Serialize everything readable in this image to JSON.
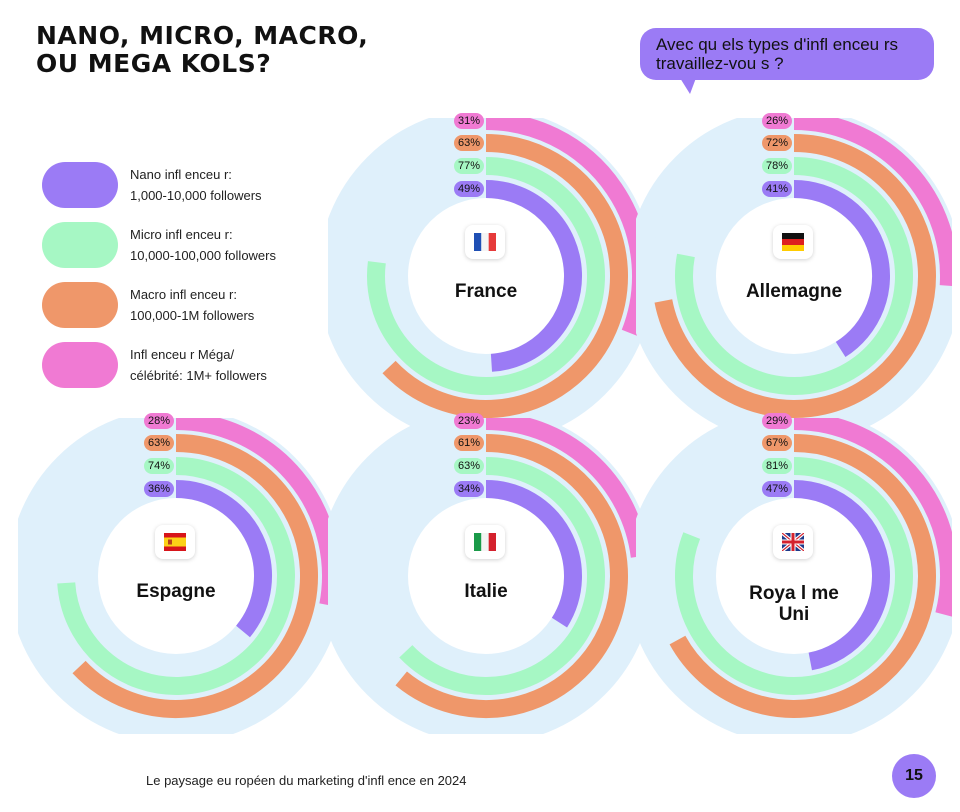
{
  "header": {
    "title_line1": "NANO, MICRO, MACRO,",
    "title_line2": "OU MEGA KOLS?",
    "question": "Avec qu els types d'infl enceu rs travaillez-vou s ?"
  },
  "legend": [
    {
      "line1": "Nano infl enceu r:",
      "line2": "1,000-10,000 followers",
      "color": "#9b7bf5"
    },
    {
      "line1": "Micro infl enceu r:",
      "line2": "10,000-100,000 followers",
      "color": "#a6f7c4"
    },
    {
      "line1": "Macro infl enceu r:",
      "line2": "100,000-1M followers",
      "color": "#ef976a"
    },
    {
      "line1": "Infl enceu r Méga/",
      "line2": "célébrité: 1M+ followers",
      "color": "#f07ad3"
    }
  ],
  "colors": {
    "nano": "#9b7bf5",
    "micro": "#a6f7c4",
    "macro": "#ef976a",
    "mega": "#f07ad3",
    "track": "#dff0fb"
  },
  "chart_data": [
    {
      "type": "radial_bar",
      "country": "France",
      "lines": [
        "France"
      ],
      "flag": "fr",
      "series": [
        {
          "name": "Nano",
          "value": 49
        },
        {
          "name": "Micro",
          "value": 77
        },
        {
          "name": "Macro",
          "value": 63
        },
        {
          "name": "Mega",
          "value": 31
        }
      ],
      "labels": [
        "49%",
        "77%",
        "63%",
        "31%"
      ]
    },
    {
      "type": "radial_bar",
      "country": "Allemagne",
      "lines": [
        "Allemagne"
      ],
      "flag": "de",
      "series": [
        {
          "name": "Nano",
          "value": 41
        },
        {
          "name": "Micro",
          "value": 78
        },
        {
          "name": "Macro",
          "value": 72
        },
        {
          "name": "Mega",
          "value": 26
        }
      ],
      "labels": [
        "41%",
        "78%",
        "72%",
        "26%"
      ]
    },
    {
      "type": "radial_bar",
      "country": "Espagne",
      "lines": [
        "Espagne"
      ],
      "flag": "es",
      "series": [
        {
          "name": "Nano",
          "value": 36
        },
        {
          "name": "Micro",
          "value": 74
        },
        {
          "name": "Macro",
          "value": 63
        },
        {
          "name": "Mega",
          "value": 28
        }
      ],
      "labels": [
        "36%",
        "74%",
        "63%",
        "28%"
      ]
    },
    {
      "type": "radial_bar",
      "country": "Italie",
      "lines": [
        "Italie"
      ],
      "flag": "it",
      "series": [
        {
          "name": "Nano",
          "value": 34
        },
        {
          "name": "Micro",
          "value": 63
        },
        {
          "name": "Macro",
          "value": 61
        },
        {
          "name": "Mega",
          "value": 23
        }
      ],
      "labels": [
        "34%",
        "63%",
        "61%",
        "23%"
      ]
    },
    {
      "type": "radial_bar",
      "country": "Royaume Uni",
      "lines": [
        "Roya l me",
        "Uni"
      ],
      "flag": "gb",
      "series": [
        {
          "name": "Nano",
          "value": 47
        },
        {
          "name": "Micro",
          "value": 81
        },
        {
          "name": "Macro",
          "value": 67
        },
        {
          "name": "Mega",
          "value": 29
        }
      ],
      "labels": [
        "47%",
        "81%",
        "67%",
        "29%"
      ]
    }
  ],
  "footer": {
    "text": "Le paysage eu ropéen du marketing d'infl ence en 2024",
    "page_number": "15"
  }
}
